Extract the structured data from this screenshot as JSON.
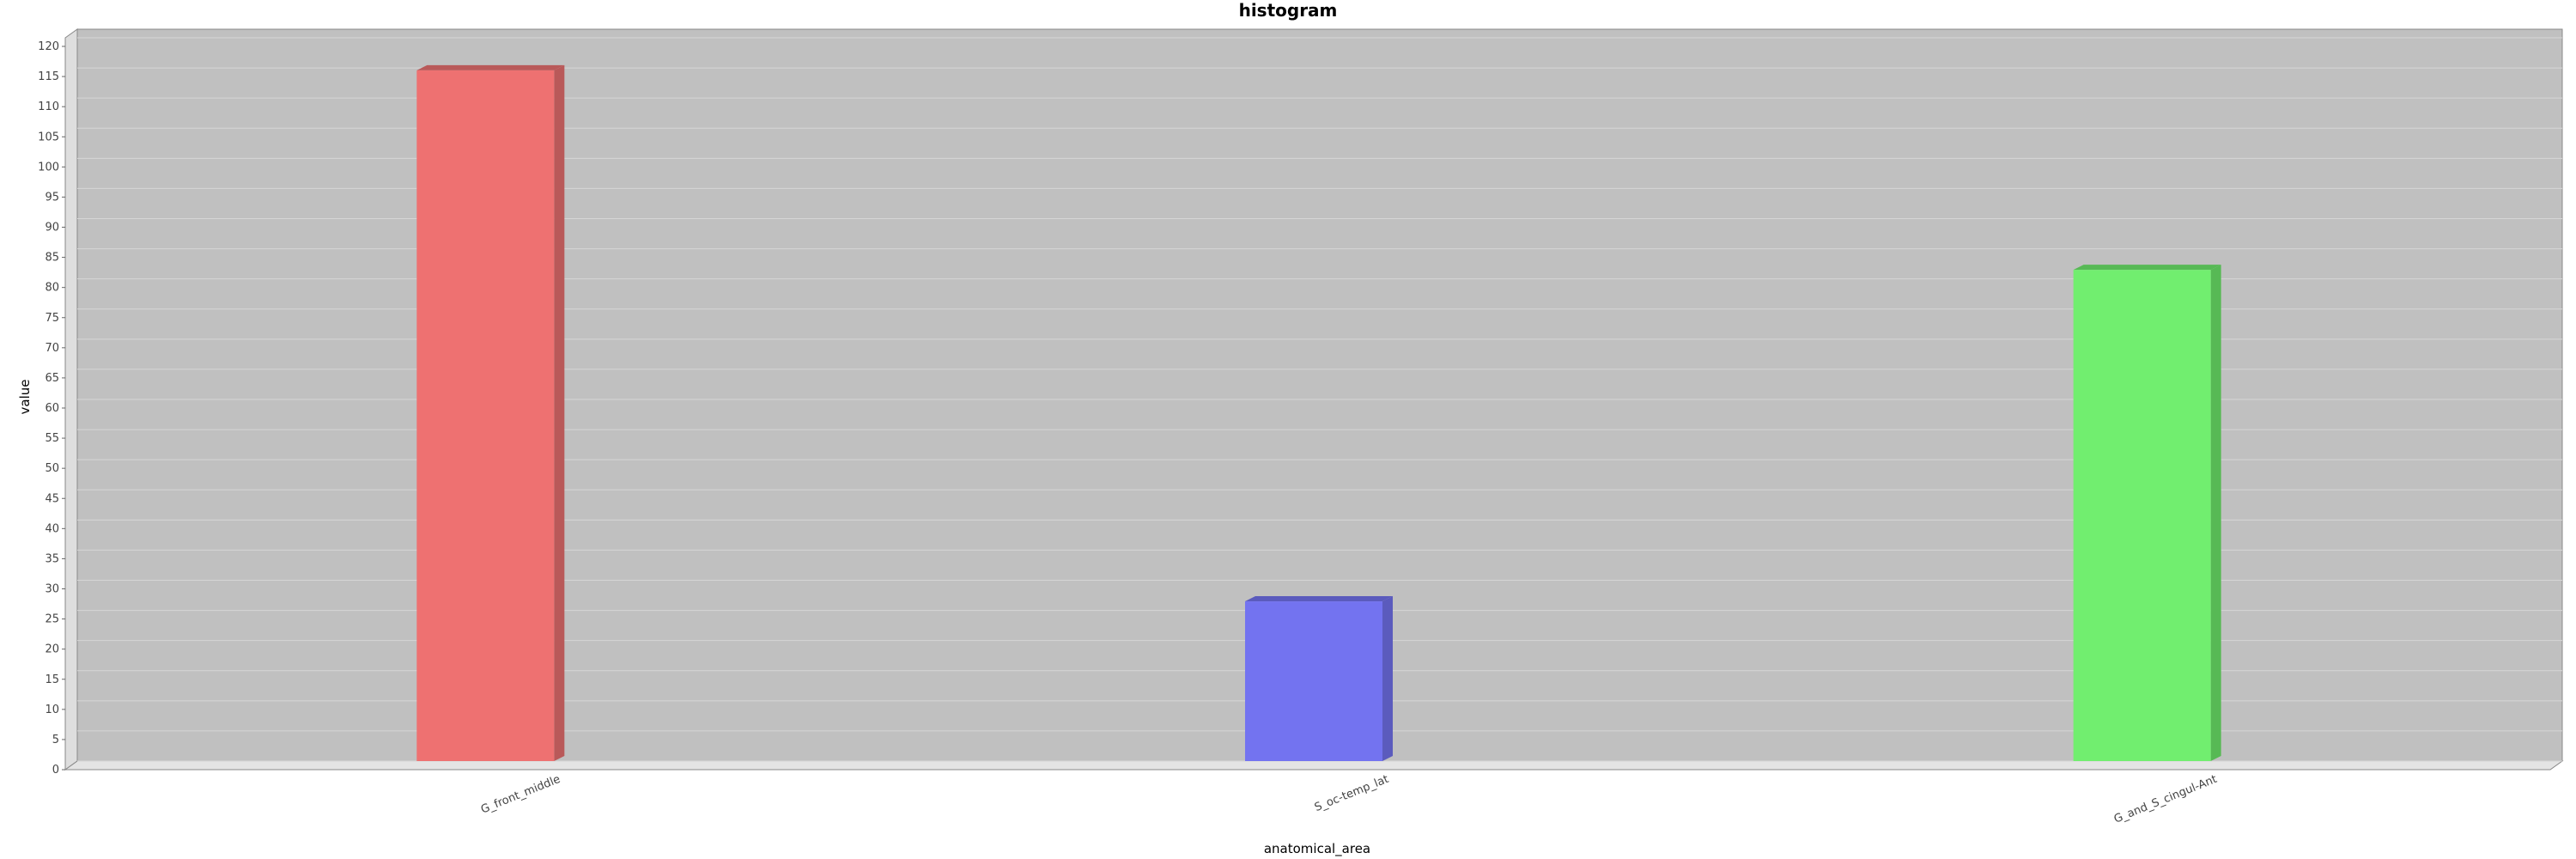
{
  "chart_data": {
    "type": "bar",
    "title": "histogram",
    "xlabel": "anatomical_area",
    "ylabel": "value",
    "categories": [
      "G_front_middle",
      "S_oc-temp_lat",
      "G_and_S_cingul-Ant"
    ],
    "series": [
      {
        "values": [
          114.6,
          26.5,
          81.5
        ]
      }
    ],
    "bar_colors": [
      "#ee7171",
      "#7373f0",
      "#71ee6f"
    ],
    "bar_side_colors": [
      "#b95959",
      "#5b5bbd",
      "#57b955"
    ],
    "ylim": [
      0,
      120
    ],
    "yticks": [
      0,
      5,
      10,
      15,
      20,
      25,
      30,
      35,
      40,
      45,
      50,
      55,
      60,
      65,
      70,
      75,
      80,
      85,
      90,
      95,
      100,
      105,
      110,
      115,
      120
    ],
    "grid": true,
    "legend": "none",
    "plot_background": "#c0c0c0"
  }
}
